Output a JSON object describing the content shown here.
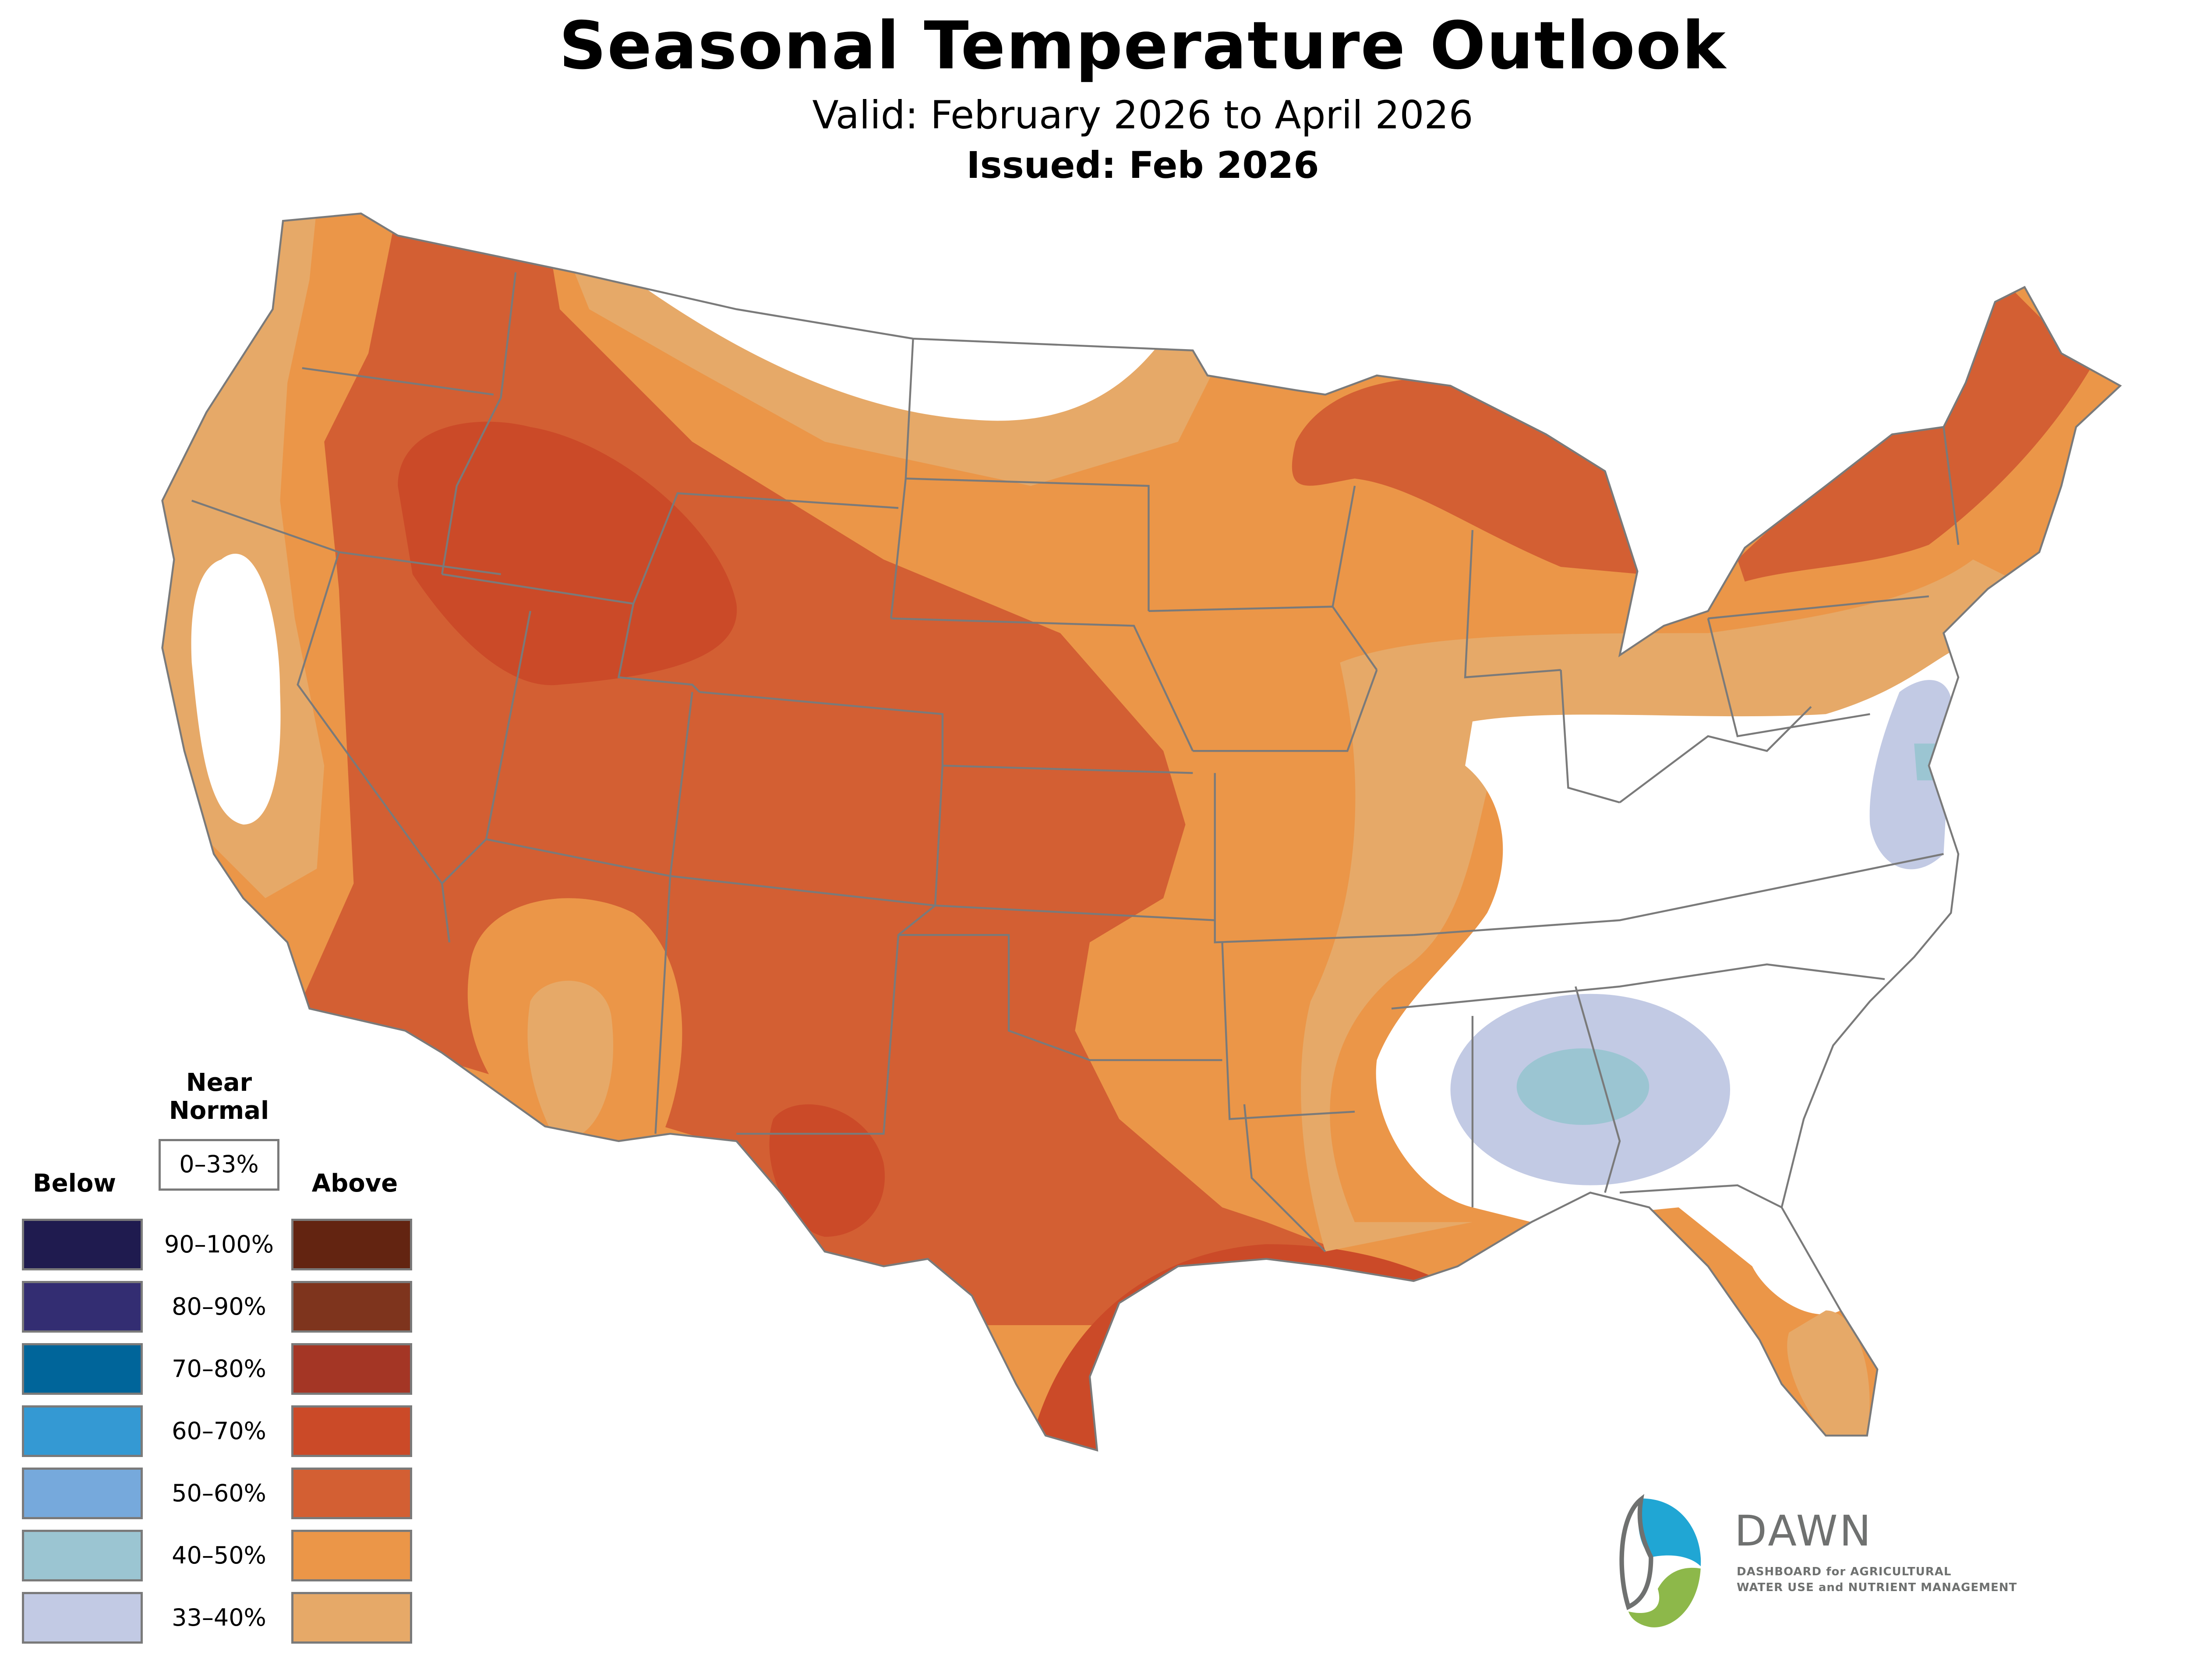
{
  "header": {
    "title": "Seasonal Temperature Outlook",
    "valid": "Valid: February 2026 to April 2026",
    "issued": "Issued: Feb 2026"
  },
  "legend": {
    "near_normal_line1": "Near",
    "near_normal_line2": "Normal",
    "near_normal_range": "0–33%",
    "below_label": "Below",
    "above_label": "Above",
    "rows": [
      {
        "range": "90–100%",
        "below_color": "#1f1b4f",
        "above_color": "#632411"
      },
      {
        "range": "80–90%",
        "below_color": "#332d72",
        "above_color": "#7e341d"
      },
      {
        "range": "70–80%",
        "below_color": "#00659a",
        "above_color": "#a43625"
      },
      {
        "range": "60–70%",
        "below_color": "#3499d3",
        "above_color": "#cb4a28"
      },
      {
        "range": "50–60%",
        "below_color": "#76a9dc",
        "above_color": "#d35f33"
      },
      {
        "range": "40–50%",
        "below_color": "#9bc5d2",
        "above_color": "#eb9648"
      },
      {
        "range": "33–40%",
        "below_color": "#c2cae4",
        "above_color": "#e6a968"
      }
    ]
  },
  "map_regions": [
    {
      "category": "Above",
      "range": "60–70%",
      "areas": [
        "Idaho/Wyoming",
        "Southwest Texas",
        "Texas Gulf Coast"
      ]
    },
    {
      "category": "Above",
      "range": "50–60%",
      "areas": [
        "Interior West",
        "Southern Plains",
        "Upper Great Lakes",
        "Northern New England"
      ]
    },
    {
      "category": "Above",
      "range": "40–50%",
      "areas": [
        "Pacific Northwest",
        "Northern Plains",
        "Midwest",
        "Mid-South"
      ]
    },
    {
      "category": "Above",
      "range": "33–40%",
      "areas": [
        "West Coast",
        "Northern Rockies",
        "Ohio Valley edge",
        "Florida Peninsula"
      ]
    },
    {
      "category": "Near Normal",
      "range": "0–33%",
      "areas": [
        "Central California",
        "Montana/North Dakota",
        "Ohio Valley",
        "Southeast"
      ]
    },
    {
      "category": "Below",
      "range": "33–40%",
      "areas": [
        "Alabama/Georgia",
        "Chesapeake Bay"
      ]
    },
    {
      "category": "Below",
      "range": "40–50%",
      "areas": [
        "Central Alabama",
        "Delaware/Maryland"
      ]
    }
  ],
  "logo": {
    "name": "DAWN",
    "tagline_line1": "DASHBOARD for AGRICULTURAL",
    "tagline_line2": "WATER USE and NUTRIENT MANAGEMENT",
    "colors": {
      "blue": "#20a6d4",
      "green": "#8db84a",
      "gray": "#6f7170"
    }
  }
}
